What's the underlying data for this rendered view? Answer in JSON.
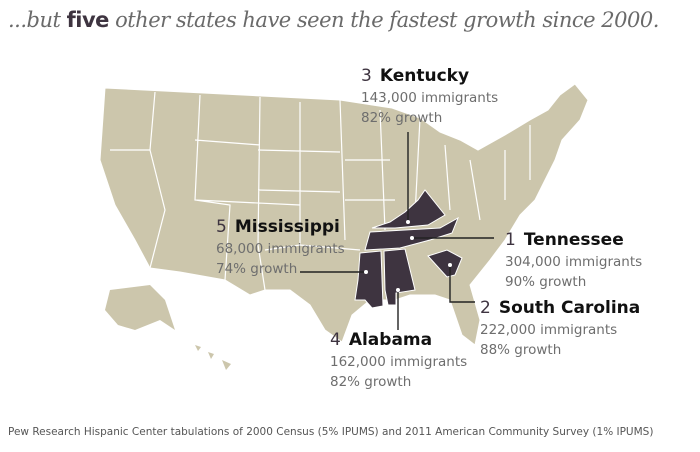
{
  "title": {
    "prefix": "...but",
    "bold": "five",
    "suffix": "other states have seen the fastest growth since 2000."
  },
  "colors": {
    "map": "#ccc6ac",
    "highlight": "#3e3440",
    "border": "#ffffff"
  },
  "states": [
    {
      "rank": "1",
      "name": "Tennessee",
      "immigrants": "304,000 immigrants",
      "growth": "90% growth"
    },
    {
      "rank": "2",
      "name": "South Carolina",
      "immigrants": "222,000 immigrants",
      "growth": "88% growth"
    },
    {
      "rank": "3",
      "name": "Kentucky",
      "immigrants": "143,000 immigrants",
      "growth": "82% growth"
    },
    {
      "rank": "4",
      "name": "Alabama",
      "immigrants": "162,000 immigrants",
      "growth": "82% growth"
    },
    {
      "rank": "5",
      "name": "Mississippi",
      "immigrants": "68,000 immigrants",
      "growth": "74% growth"
    }
  ],
  "source": "Pew Research Hispanic Center tabulations of 2000 Census (5% IPUMS) and 2011 American Community Survey (1% IPUMS)"
}
